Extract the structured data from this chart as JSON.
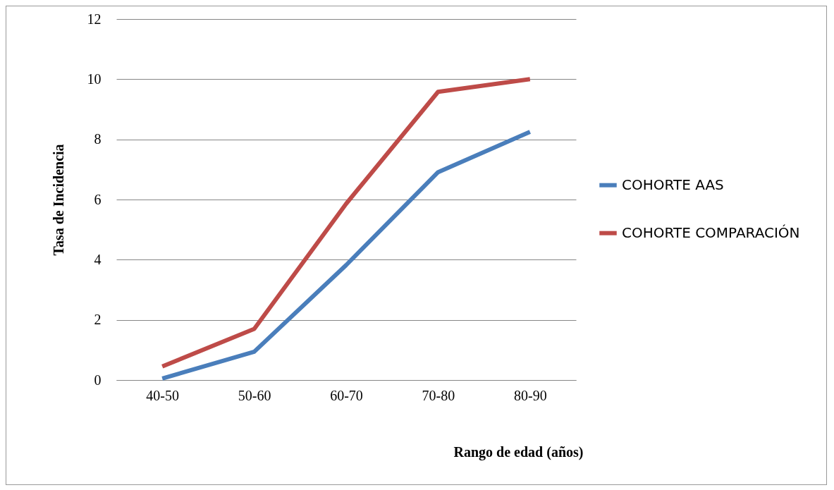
{
  "chart_data": {
    "type": "line",
    "xlabel": "Rango de edad (años)",
    "ylabel": "Tasa de Incidencia",
    "categories": [
      "40-50",
      "50-60",
      "60-70",
      "70-80",
      "80-90"
    ],
    "series": [
      {
        "name": "COHORTE AAS",
        "color": "#4a7ebb",
        "values": [
          0.05,
          0.94,
          3.82,
          6.91,
          8.25
        ]
      },
      {
        "name": "COHORTE COMPARACIÓN",
        "color": "#be4b48",
        "values": [
          0.45,
          1.7,
          5.86,
          9.58,
          10.0
        ]
      }
    ],
    "ylim": [
      0,
      12
    ],
    "yticks": [
      0,
      2,
      4,
      6,
      8,
      10,
      12
    ],
    "grid": "y",
    "legend": "right",
    "marker": "none",
    "line_style": "solid"
  }
}
